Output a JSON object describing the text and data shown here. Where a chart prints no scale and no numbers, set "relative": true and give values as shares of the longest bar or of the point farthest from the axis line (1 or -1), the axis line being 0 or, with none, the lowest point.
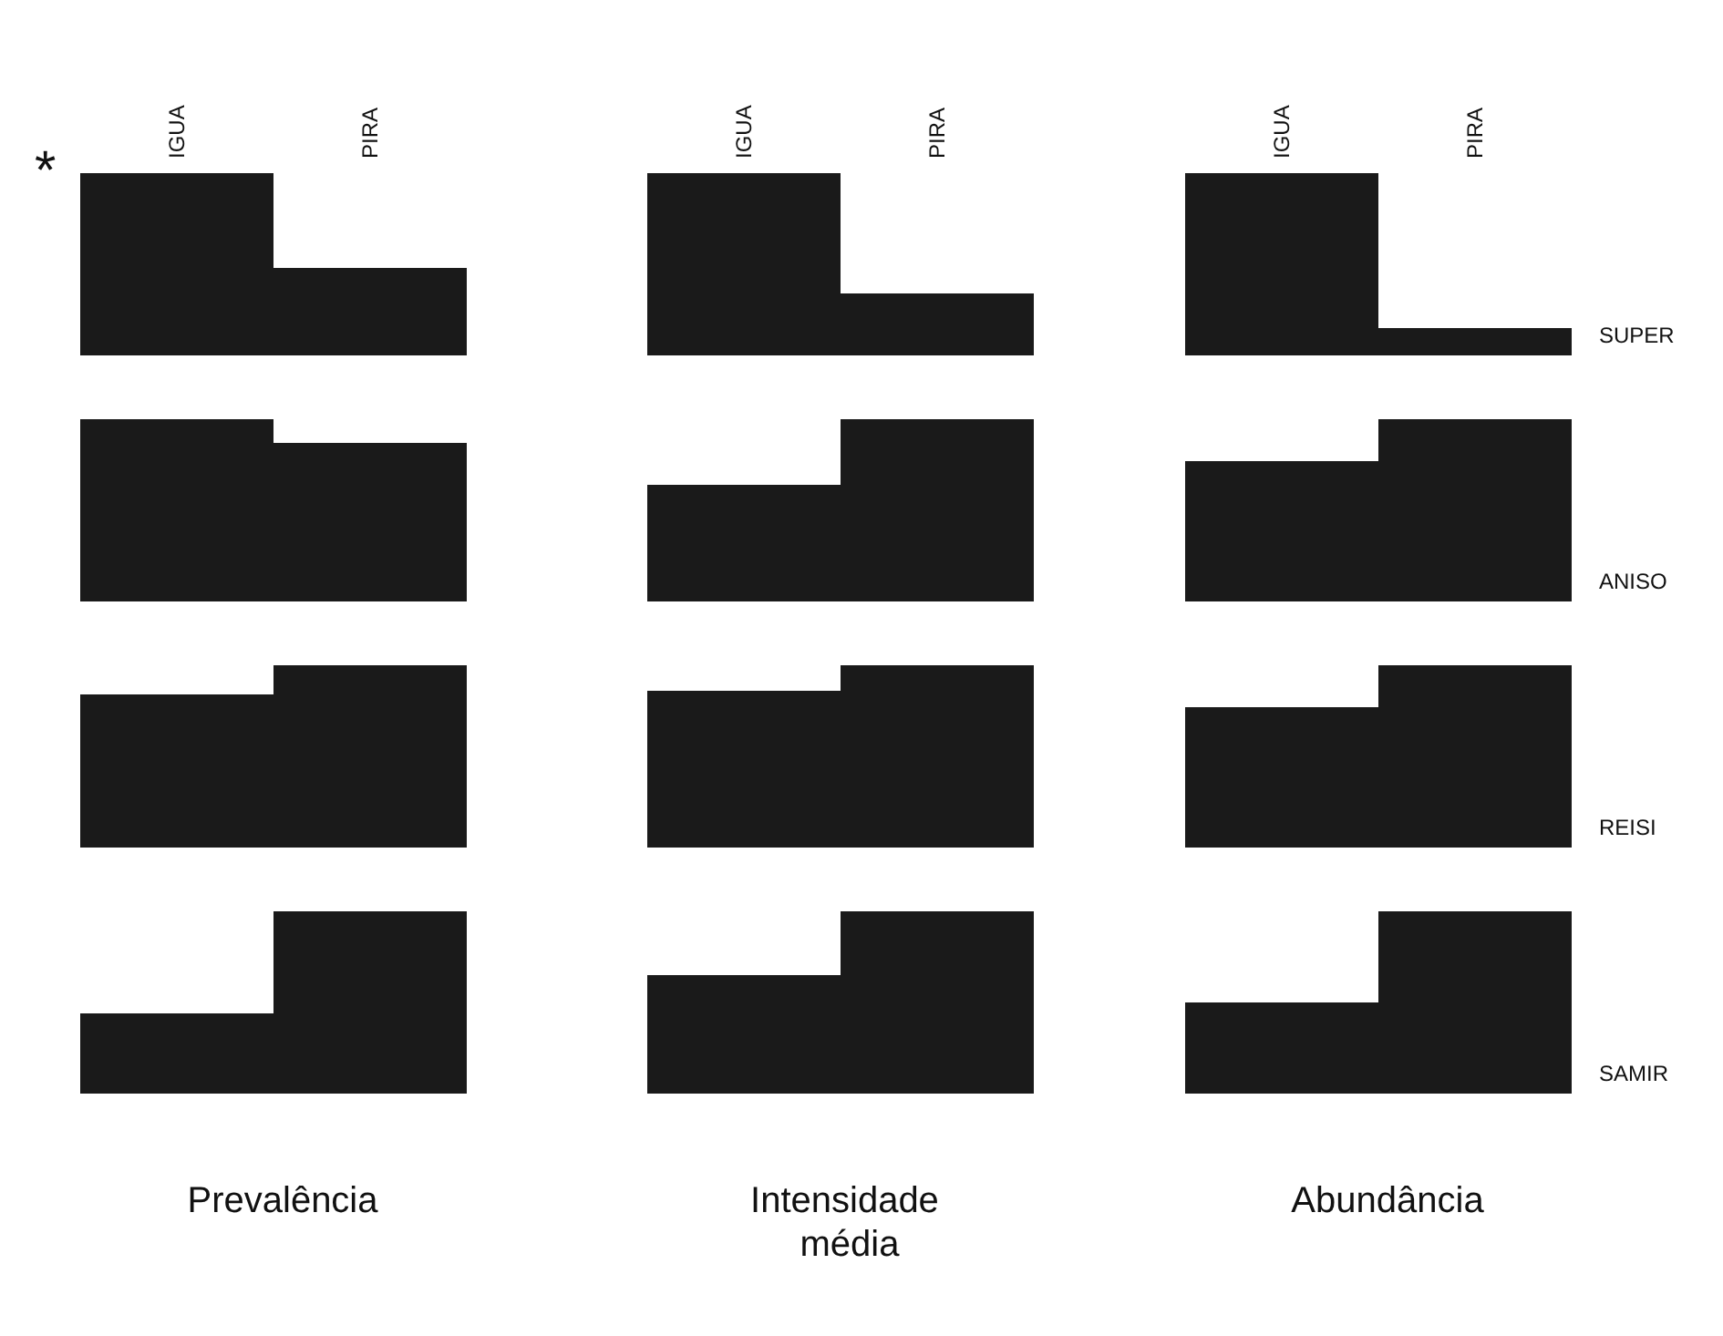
{
  "chart_data": [
    {
      "type": "bar",
      "relative": true,
      "categories": [
        "IGUA",
        "PIRA"
      ],
      "values": [
        1,
        0.48
      ],
      "color": "#1a1a1a",
      "tick_labels": "x",
      "annotations": [
        "*"
      ]
    },
    {
      "type": "bar",
      "relative": true,
      "categories": [
        "IGUA",
        "PIRA"
      ],
      "values": [
        1,
        0.34
      ],
      "color": "#1a1a1a",
      "tick_labels": "x"
    },
    {
      "type": "bar",
      "relative": true,
      "categories": [
        "IGUA",
        "PIRA"
      ],
      "values": [
        1,
        0.15
      ],
      "color": "#1a1a1a",
      "tick_labels": "x",
      "ylabel": "SUPER"
    },
    {
      "type": "bar",
      "relative": true,
      "categories": [
        "IGUA",
        "PIRA"
      ],
      "values": [
        1,
        0.87
      ],
      "color": "#1a1a1a",
      "tick_labels": false
    },
    {
      "type": "bar",
      "relative": true,
      "categories": [
        "IGUA",
        "PIRA"
      ],
      "values": [
        0.64,
        1
      ],
      "color": "#1a1a1a",
      "tick_labels": false
    },
    {
      "type": "bar",
      "relative": true,
      "categories": [
        "IGUA",
        "PIRA"
      ],
      "values": [
        0.77,
        1
      ],
      "color": "#1a1a1a",
      "tick_labels": false,
      "ylabel": "ANISO"
    },
    {
      "type": "bar",
      "relative": true,
      "categories": [
        "IGUA",
        "PIRA"
      ],
      "values": [
        0.84,
        1
      ],
      "color": "#1a1a1a",
      "tick_labels": false
    },
    {
      "type": "bar",
      "relative": true,
      "categories": [
        "IGUA",
        "PIRA"
      ],
      "values": [
        0.86,
        1
      ],
      "color": "#1a1a1a",
      "tick_labels": false
    },
    {
      "type": "bar",
      "relative": true,
      "categories": [
        "IGUA",
        "PIRA"
      ],
      "values": [
        0.77,
        1
      ],
      "color": "#1a1a1a",
      "tick_labels": false,
      "ylabel": "REISI"
    },
    {
      "type": "bar",
      "relative": true,
      "categories": [
        "IGUA",
        "PIRA"
      ],
      "values": [
        0.44,
        1
      ],
      "color": "#1a1a1a",
      "tick_labels": false,
      "xlabel": "Prevalência"
    },
    {
      "type": "bar",
      "relative": true,
      "categories": [
        "IGUA",
        "PIRA"
      ],
      "values": [
        0.65,
        1
      ],
      "color": "#1a1a1a",
      "tick_labels": false,
      "xlabel": "Intensidade média"
    },
    {
      "type": "bar",
      "relative": true,
      "categories": [
        "IGUA",
        "PIRA"
      ],
      "values": [
        0.5,
        1
      ],
      "color": "#1a1a1a",
      "tick_labels": false,
      "xlabel": "Abundância",
      "ylabel": "SAMIR"
    }
  ]
}
